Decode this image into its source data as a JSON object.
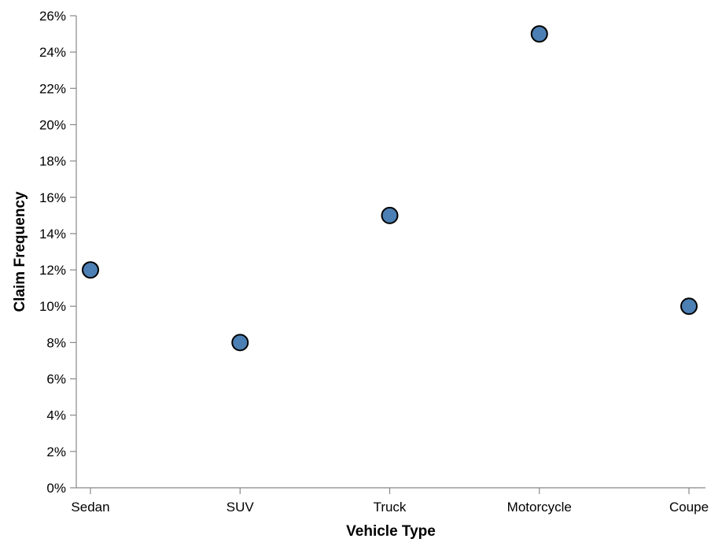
{
  "chart_data": {
    "type": "scatter",
    "categories": [
      "Sedan",
      "SUV",
      "Truck",
      "Motorcycle",
      "Coupe"
    ],
    "values": [
      0.12,
      0.08,
      0.15,
      0.25,
      0.1
    ],
    "xlabel": "Vehicle Type",
    "ylabel": "Claim Frequency",
    "ylim": [
      0,
      0.26
    ],
    "y_ticks": [
      0,
      0.02,
      0.04,
      0.06,
      0.08,
      0.1,
      0.12,
      0.14,
      0.16,
      0.18,
      0.2,
      0.22,
      0.24,
      0.26
    ],
    "y_tick_format": "percent",
    "grid": false,
    "marker_color": "#4c7fb3",
    "marker_stroke": "#000000"
  }
}
